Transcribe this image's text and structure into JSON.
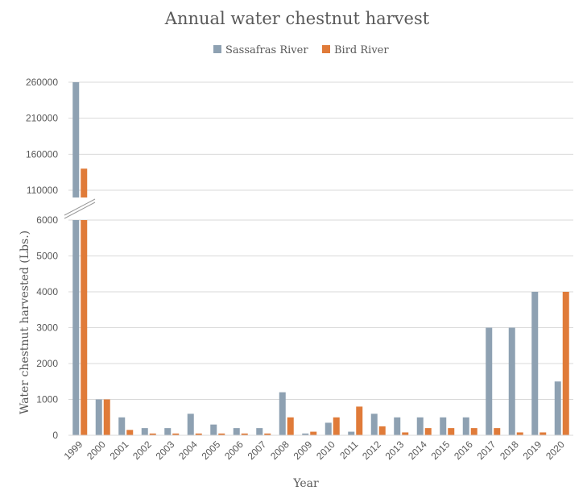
{
  "chart_data": {
    "type": "bar",
    "title": "Annual water chestnut harvest",
    "xlabel": "Year",
    "ylabel": "Water chestnut harvested (Lbs.)",
    "legend_position": "top",
    "grid": true,
    "categories": [
      "1999",
      "2000",
      "2001",
      "2002",
      "2003",
      "2004",
      "2005",
      "2006",
      "2007",
      "2008",
      "2009",
      "2010",
      "2011",
      "2012",
      "2013",
      "2014",
      "2015",
      "2016",
      "2017",
      "2018",
      "2019",
      "2020"
    ],
    "series": [
      {
        "name": "Sassafras River",
        "color": "#8EA1B2",
        "values": [
          260000,
          1000,
          500,
          200,
          200,
          600,
          300,
          200,
          200,
          1200,
          50,
          350,
          100,
          600,
          500,
          500,
          500,
          500,
          3000,
          3000,
          4000,
          1500
        ]
      },
      {
        "name": "Bird River",
        "color": "#E07B39",
        "values": [
          140000,
          1000,
          150,
          50,
          50,
          50,
          50,
          50,
          50,
          500,
          100,
          500,
          800,
          250,
          80,
          200,
          200,
          200,
          200,
          80,
          80,
          4000
        ]
      }
    ],
    "axis_break": true,
    "upper_ticks": [
      110000,
      160000,
      210000,
      260000
    ],
    "upper_ylim": [
      95000,
      262000
    ],
    "lower_ticks": [
      0,
      1000,
      2000,
      3000,
      4000,
      5000,
      6000
    ],
    "lower_ylim": [
      0,
      6000
    ]
  }
}
